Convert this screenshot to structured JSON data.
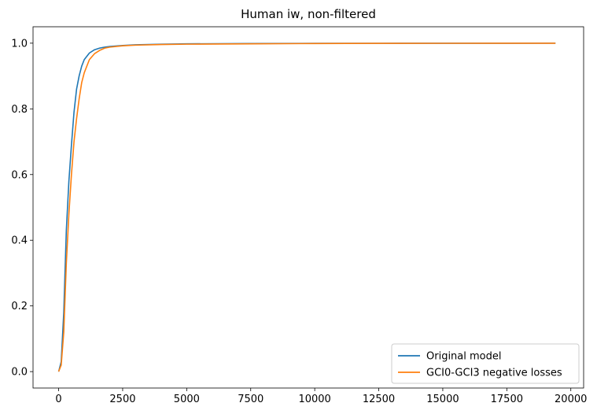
{
  "chart_data": {
    "type": "line",
    "title": "Human iw, non-filtered",
    "xlabel": "",
    "ylabel": "",
    "xlim": [
      -1000,
      20500
    ],
    "ylim": [
      -0.05,
      1.05
    ],
    "x_ticks": [
      0,
      2500,
      5000,
      7500,
      10000,
      12500,
      15000,
      17500,
      20000
    ],
    "x_tick_labels": [
      "0",
      "2500",
      "5000",
      "7500",
      "10000",
      "12500",
      "15000",
      "17500",
      "20000"
    ],
    "y_ticks": [
      0.0,
      0.2,
      0.4,
      0.6,
      0.8,
      1.0
    ],
    "y_tick_labels": [
      "0.0",
      "0.2",
      "0.4",
      "0.6",
      "0.8",
      "1.0"
    ],
    "grid": false,
    "legend_position": "lower-right",
    "series": [
      {
        "name": "Original model",
        "color": "#1f77b4",
        "x": [
          0,
          100,
          200,
          300,
          400,
          500,
          600,
          700,
          800,
          900,
          1000,
          1200,
          1400,
          1600,
          1800,
          2000,
          2500,
          3000,
          4000,
          5000,
          7500,
          10000,
          12500,
          15000,
          17500,
          19400
        ],
        "y": [
          0.0,
          0.03,
          0.18,
          0.43,
          0.58,
          0.69,
          0.79,
          0.86,
          0.9,
          0.93,
          0.95,
          0.97,
          0.98,
          0.985,
          0.988,
          0.99,
          0.993,
          0.995,
          0.997,
          0.998,
          0.999,
          0.9995,
          0.9997,
          0.9998,
          0.9999,
          1.0
        ]
      },
      {
        "name": "GCI0-GCI3 negative losses",
        "color": "#ff7f0e",
        "x": [
          0,
          100,
          200,
          300,
          400,
          500,
          600,
          700,
          800,
          900,
          1000,
          1200,
          1400,
          1600,
          1800,
          2000,
          2500,
          3000,
          4000,
          5000,
          7500,
          10000,
          12500,
          15000,
          17500,
          19400
        ],
        "y": [
          0.0,
          0.02,
          0.12,
          0.33,
          0.48,
          0.6,
          0.7,
          0.77,
          0.83,
          0.88,
          0.91,
          0.95,
          0.968,
          0.978,
          0.985,
          0.988,
          0.992,
          0.994,
          0.996,
          0.997,
          0.998,
          0.999,
          0.9995,
          0.9997,
          0.9998,
          0.9999
        ]
      }
    ]
  }
}
